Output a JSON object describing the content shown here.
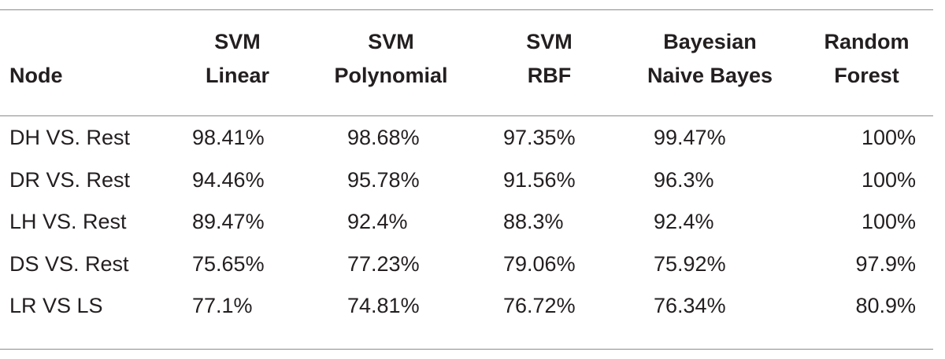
{
  "table": {
    "headers": [
      {
        "line1": "",
        "line2": "Node"
      },
      {
        "line1": "SVM",
        "line2": "Linear"
      },
      {
        "line1": "SVM",
        "line2": "Polynomial"
      },
      {
        "line1": "SVM",
        "line2": "RBF"
      },
      {
        "line1": "Bayesian",
        "line2": "Naive Bayes"
      },
      {
        "line1": "Random",
        "line2": "Forest"
      }
    ],
    "rows": [
      [
        "DH VS. Rest",
        "98.41%",
        "98.68%",
        "97.35%",
        "99.47%",
        "100%"
      ],
      [
        "DR VS. Rest",
        "94.46%",
        "95.78%",
        "91.56%",
        "96.3%",
        "100%"
      ],
      [
        "LH VS. Rest",
        "89.47%",
        "92.4%",
        "88.3%",
        "92.4%",
        "100%"
      ],
      [
        "DS VS. Rest",
        "75.65%",
        "77.23%",
        "79.06%",
        "75.92%",
        "97.9%"
      ],
      [
        "LR VS LS",
        "77.1%",
        "74.81%",
        "76.72%",
        "76.34%",
        "80.9%"
      ]
    ]
  }
}
